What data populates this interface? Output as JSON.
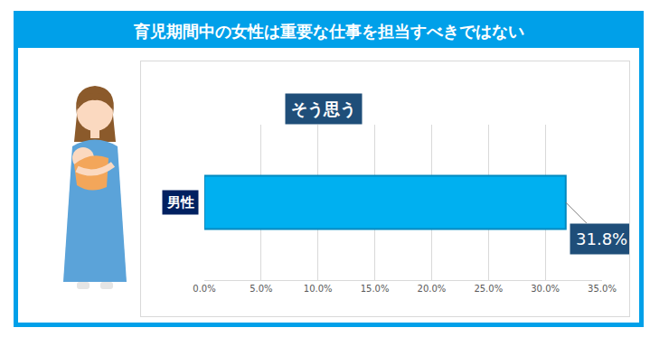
{
  "chart_data": {
    "type": "bar",
    "orientation": "horizontal",
    "title": "育児期間中の女性は重要な仕事を担当すべきではない",
    "subtitle": "そう思う",
    "categories": [
      "男性"
    ],
    "values": [
      31.8
    ],
    "value_labels": [
      "31.8%"
    ],
    "data_labels": true,
    "color": "#00b0f0",
    "xlim": [
      0,
      35
    ],
    "xticks": [
      {
        "value": 0,
        "label": "0.0%"
      },
      {
        "value": 5,
        "label": "5.0%"
      },
      {
        "value": 10,
        "label": "10.0%"
      },
      {
        "value": 15,
        "label": "15.0%"
      },
      {
        "value": 20,
        "label": "20.0%"
      },
      {
        "value": 25,
        "label": "25.0%"
      },
      {
        "value": 30,
        "label": "30.0%"
      },
      {
        "value": 35,
        "label": "35.0%"
      }
    ],
    "grid": true
  }
}
